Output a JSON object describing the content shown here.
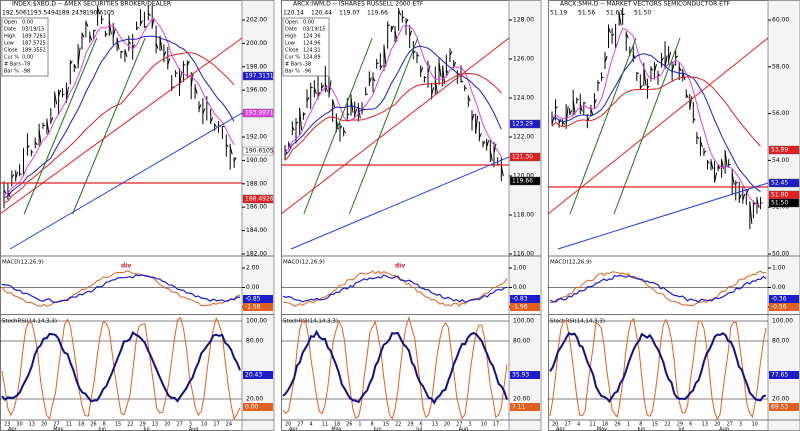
{
  "panels": [
    {
      "title": "INDEX:$XBD,D -- AMEX SECURITIES BROKER/DEALER",
      "quote": [
        "192.5061",
        "193.5494",
        "189.2438",
        "190.6105"
      ],
      "info": [
        {
          "label": "Open",
          "value": "0.00"
        },
        {
          "label": "Date",
          "value": "03/19/15"
        },
        {
          "label": "High",
          "value": "189.7263"
        },
        {
          "label": "Low",
          "value": "187.5725"
        },
        {
          "label": "Close",
          "value": "189.3552"
        },
        {
          "label": "Cur %",
          "value": "0.00"
        },
        {
          "label": "# Bars",
          "value": "-78"
        },
        {
          "label": "Bar %",
          "value": "-98"
        }
      ],
      "price_axis": [
        "202.00",
        "200.00",
        "198.00",
        "196.00",
        "194.00",
        "192.00",
        "190.00",
        "188.00",
        "186.00",
        "184.00",
        "182.00"
      ],
      "price_flags": [
        {
          "label": "197.3131",
          "color": "#1c1cc8"
        },
        {
          "label": "193.9971",
          "color": "#e040e0"
        },
        {
          "label": "190.6105",
          "color": "#ffffff"
        },
        {
          "label": "188.4926",
          "color": "#e02020"
        }
      ],
      "macd": {
        "title": "MACD(12,26,9)",
        "axis": [
          "2.00",
          "0.00",
          "-2.00"
        ],
        "flags": [
          {
            "label": "-0.85",
            "color": "#1c1cc8"
          },
          {
            "label": "-1.58",
            "color": "#e06020"
          }
        ]
      },
      "annotation": "div",
      "stoch": {
        "title": "StochRSI(14,14,3,3)",
        "axis": [
          "100.00",
          "80.00",
          "20.00"
        ],
        "flags": [
          {
            "label": "20.43",
            "color": "#1c1cc8"
          },
          {
            "label": "0.00",
            "color": "#e06020"
          }
        ]
      },
      "days": [
        "23",
        "30",
        "13",
        "20",
        "27",
        "11",
        "18",
        "26",
        "8",
        "15",
        "22",
        "29",
        "13",
        "20",
        "27",
        "3",
        "10",
        "17",
        "24"
      ],
      "months": [
        "Apr",
        "May",
        "Jun",
        "Jul",
        "Aug"
      ]
    },
    {
      "title": "ARCX:IWM,D -- ISHARES RUSSELL 2000 ETF",
      "quote": [
        "120.14",
        "120.44",
        "119.07",
        "119.66"
      ],
      "info": [
        {
          "label": "Open",
          "value": "0.00"
        },
        {
          "label": "Date",
          "value": "03/19/15"
        },
        {
          "label": "High",
          "value": "124.36"
        },
        {
          "label": "Low",
          "value": "124.96"
        },
        {
          "label": "Close",
          "value": "124.31"
        },
        {
          "label": "Cur %",
          "value": "124.89"
        },
        {
          "label": "# Bars",
          "value": "-38"
        },
        {
          "label": "Bar %",
          "value": "-96"
        }
      ],
      "price_axis": [
        "128.00",
        "126.00",
        "124.00",
        "122.00",
        "120.00",
        "118.00",
        "116.00"
      ],
      "price_flags": [
        {
          "label": "123.29",
          "color": "#1c1cc8"
        },
        {
          "label": "121.30",
          "color": "#e02020"
        },
        {
          "label": "119.66",
          "color": "#000000"
        }
      ],
      "macd": {
        "title": "MACD(12,26,9)",
        "axis": [
          "1.00",
          "0.00",
          "-1.00"
        ],
        "flags": [
          {
            "label": "-0.83",
            "color": "#1c1cc8"
          },
          {
            "label": "-1.96",
            "color": "#e06020"
          }
        ]
      },
      "annotation": "div",
      "stoch": {
        "title": "StochRSI(14,14,3,3)",
        "axis": [
          "100.00",
          "80.00",
          "20.00"
        ],
        "flags": [
          {
            "label": "35.93",
            "color": "#1c1cc8"
          },
          {
            "label": "7.11",
            "color": "#e06020"
          }
        ]
      },
      "days": [
        "20",
        "27",
        "4",
        "11",
        "18",
        "26",
        "1",
        "8",
        "15",
        "22",
        "29",
        "6",
        "13",
        "20",
        "27",
        "3",
        "10",
        "17"
      ],
      "months": [
        "Apr",
        "May",
        "Jun",
        "Jul",
        "Aug"
      ]
    },
    {
      "title": "ARCX:SMH,D -- MARKET VECTORS SEMICONDUCTOR ETF",
      "quote": [
        "51.19",
        "51.56",
        "51.61",
        "51.50"
      ],
      "info": [],
      "price_axis": [
        "60.00",
        "58.00",
        "56.00",
        "54.00",
        "52.00",
        "50.00"
      ],
      "price_flags": [
        {
          "label": "53.99",
          "color": "#e02020"
        },
        {
          "label": "52.45",
          "color": "#1c1cc8"
        },
        {
          "label": "51.90",
          "color": "#e02020"
        },
        {
          "label": "51.50",
          "color": "#000000"
        }
      ],
      "macd": {
        "title": "MACD(12,26,9)",
        "axis": [
          "1.00",
          "0.00",
          "-1.00"
        ],
        "flags": [
          {
            "label": "-0.36",
            "color": "#1c1cc8"
          },
          {
            "label": "-0.56",
            "color": "#e06020"
          }
        ]
      },
      "annotation": "",
      "stoch": {
        "title": "StochRSI(14,14,3,3)",
        "axis": [
          "100.00",
          "80.00",
          "20.00"
        ],
        "flags": [
          {
            "label": "77.65",
            "color": "#1c1cc8"
          },
          {
            "label": "69.53",
            "color": "#e06020"
          }
        ]
      },
      "days": [
        "20",
        "27",
        "4",
        "11",
        "18",
        "26",
        "1",
        "8",
        "15",
        "22",
        "29",
        "6",
        "13",
        "20",
        "27",
        "3",
        "10"
      ],
      "months": [
        "Apr",
        "May",
        "Jun",
        "Jul",
        "Aug"
      ]
    }
  ]
}
